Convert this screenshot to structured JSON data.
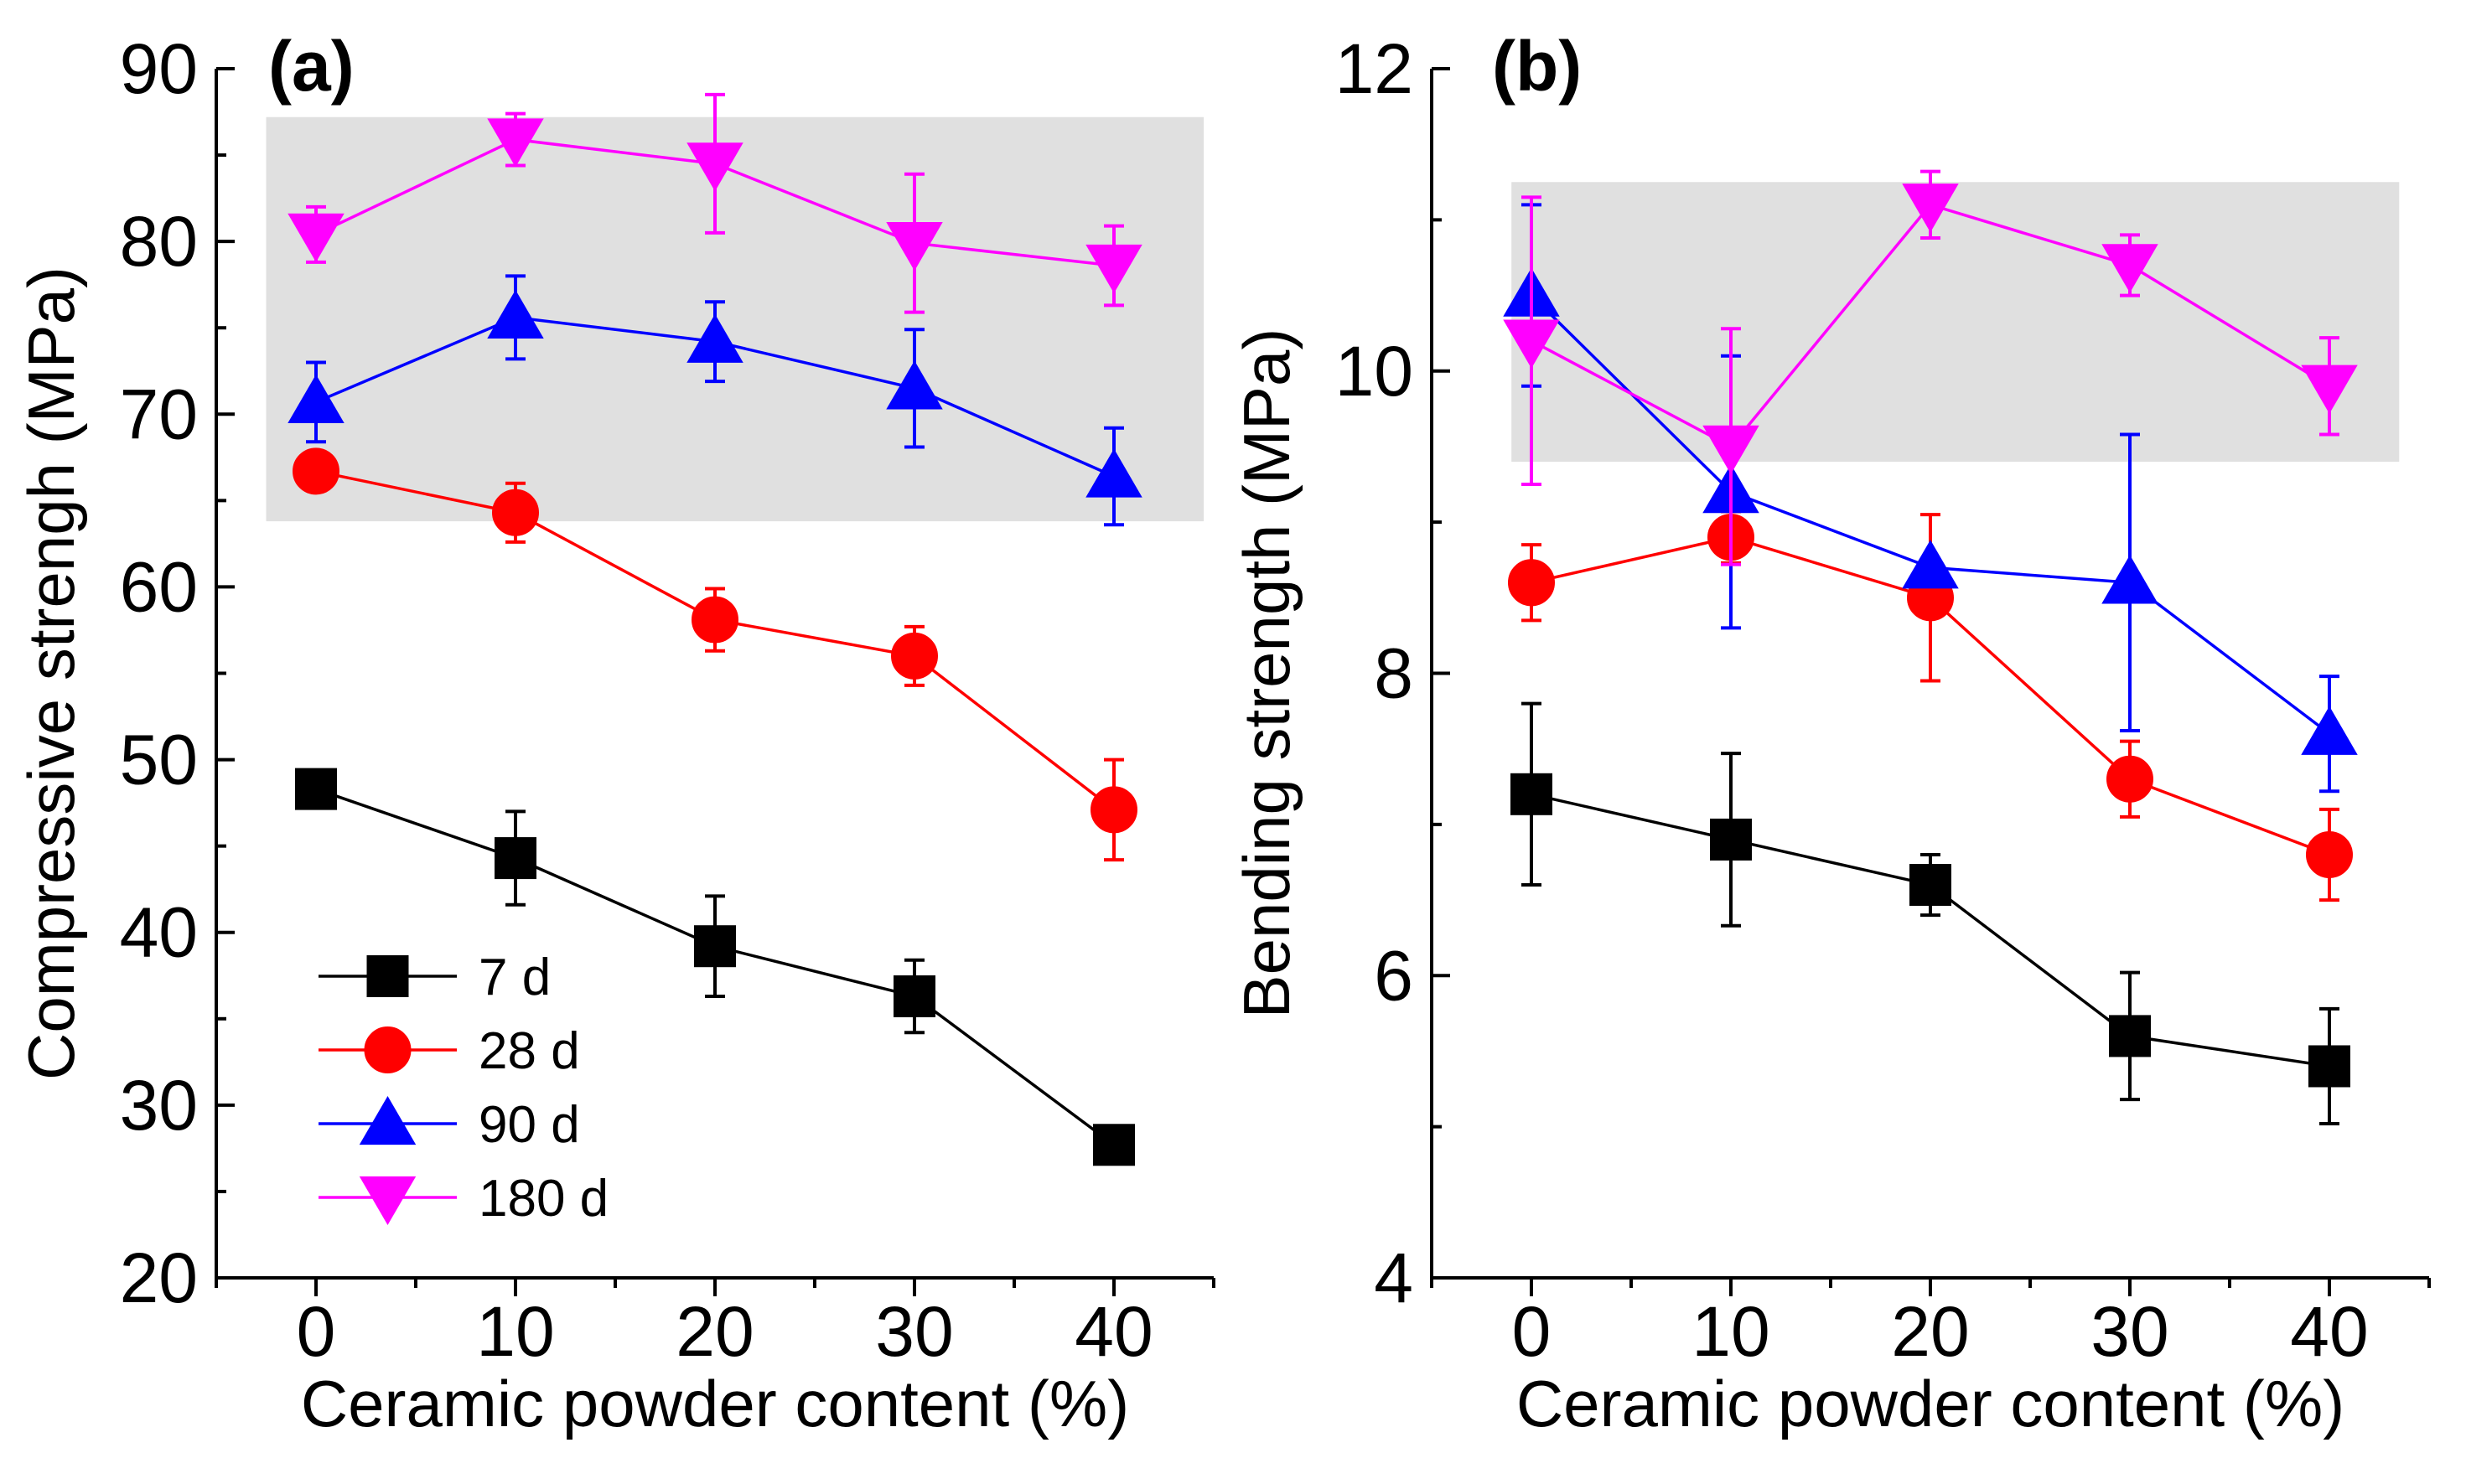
{
  "chart_data": [
    {
      "type": "line",
      "panel_label": "(a)",
      "xlabel": "Ceramic powder content (%)",
      "ylabel": "Compressive strengh (MPa)",
      "xlim": [
        -5,
        45
      ],
      "ylim": [
        20,
        90
      ],
      "xticks": [
        0,
        10,
        20,
        30,
        40
      ],
      "yticks": [
        20,
        30,
        40,
        50,
        60,
        70,
        80,
        90
      ],
      "x": [
        0,
        10,
        20,
        30,
        40
      ],
      "highlight_band": {
        "x": [
          -2.5,
          44.5
        ],
        "y": [
          63.8,
          87.2
        ],
        "color": "#e0e0e0"
      },
      "legend": {
        "location": "bottom-left"
      },
      "series": [
        {
          "name": "7 d",
          "marker": "square",
          "color": "#000000",
          "values": [
            48.3,
            44.3,
            39.2,
            36.3,
            27.7
          ],
          "errors": [
            0.7,
            2.7,
            2.9,
            2.1,
            0.4
          ]
        },
        {
          "name": "28 d",
          "marker": "circle",
          "color": "#ff0000",
          "values": [
            66.7,
            64.3,
            58.1,
            56.0,
            47.1
          ],
          "errors": [
            0.8,
            1.7,
            1.8,
            1.7,
            2.9
          ]
        },
        {
          "name": "90 d",
          "marker": "triangle-up",
          "color": "#0000ff",
          "values": [
            70.7,
            75.6,
            74.2,
            71.5,
            66.4
          ],
          "errors": [
            2.3,
            2.4,
            2.3,
            3.4,
            2.8
          ]
        },
        {
          "name": " 180 d",
          "marker": "triangle-down",
          "color": "#ff00ff",
          "values": [
            80.4,
            85.9,
            84.5,
            79.9,
            78.6
          ],
          "errors": [
            1.6,
            1.5,
            4.0,
            4.0,
            2.3
          ]
        }
      ]
    },
    {
      "type": "line",
      "panel_label": "(b)",
      "xlabel": "Ceramic powder content (%)",
      "ylabel": "Bending strength (MPa)",
      "xlim": [
        -5,
        45
      ],
      "ylim": [
        4,
        12
      ],
      "xticks": [
        0,
        10,
        20,
        30,
        40
      ],
      "yticks": [
        4,
        6,
        8,
        10,
        12
      ],
      "x": [
        0,
        10,
        20,
        30,
        40
      ],
      "highlight_band": {
        "x": [
          -1.0,
          43.5
        ],
        "y": [
          9.4,
          11.25
        ],
        "color": "#e0e0e0"
      },
      "series": [
        {
          "name": "7 d",
          "marker": "square",
          "color": "#000000",
          "values": [
            7.2,
            6.9,
            6.6,
            5.6,
            5.4
          ],
          "errors": [
            0.6,
            0.57,
            0.2,
            0.42,
            0.38
          ]
        },
        {
          "name": "28 d",
          "marker": "circle",
          "color": "#ff0000",
          "values": [
            8.6,
            8.9,
            8.5,
            7.3,
            6.8
          ],
          "errors": [
            0.25,
            0.17,
            0.55,
            0.25,
            0.3
          ]
        },
        {
          "name": "90 d",
          "marker": "triangle-up",
          "color": "#0000ff",
          "values": [
            10.5,
            9.2,
            8.7,
            8.6,
            7.6
          ],
          "errors": [
            0.6,
            0.9,
            0.05,
            0.98,
            0.38
          ]
        },
        {
          "name": " 180 d",
          "marker": "triangle-down",
          "color": "#ff00ff",
          "values": [
            10.2,
            9.5,
            11.1,
            10.7,
            9.9
          ],
          "errors": [
            0.95,
            0.78,
            0.22,
            0.2,
            0.32
          ]
        }
      ]
    }
  ]
}
